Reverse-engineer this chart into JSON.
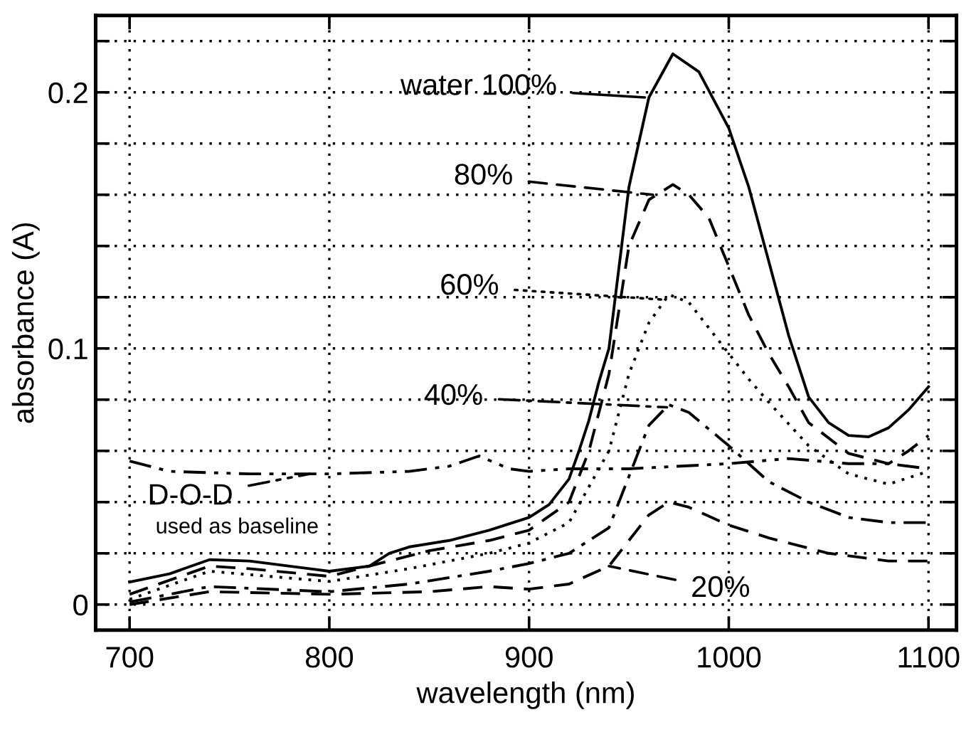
{
  "chart_data": {
    "type": "line",
    "xlabel": "wavelength (nm)",
    "ylabel": "absorbance (A)",
    "xlim": [
      683,
      1114
    ],
    "ylim": [
      -0.01,
      0.23
    ],
    "xticks": [
      700,
      800,
      900,
      1000,
      1100
    ],
    "yticks": [
      0,
      {
        "value": 0.02,
        "label": null
      },
      {
        "value": 0.04,
        "label": null
      },
      {
        "value": 0.06,
        "label": null
      },
      {
        "value": 0.08,
        "label": null
      },
      0.1,
      {
        "value": 0.12,
        "label": null
      },
      {
        "value": 0.14,
        "label": null
      },
      {
        "value": 0.16,
        "label": null
      },
      {
        "value": 0.18,
        "label": null
      },
      0.2,
      {
        "value": 0.22,
        "label": null
      }
    ],
    "grid": true,
    "legend": "top left",
    "marker": "none",
    "annotations": [
      "used as baseline"
    ],
    "series": [
      {
        "name": "water 100%",
        "color": "#000000",
        "line_style": "solid",
        "x": [
          700,
          720,
          740,
          760,
          790,
          800,
          820,
          830,
          840,
          860,
          880,
          900,
          910,
          920,
          925,
          930,
          935,
          940,
          950,
          960,
          972,
          985,
          1000,
          1010,
          1020,
          1030,
          1040,
          1050,
          1060,
          1070,
          1080,
          1090,
          1100
        ],
        "values": [
          0.0088,
          0.012,
          0.0175,
          0.017,
          0.014,
          0.013,
          0.015,
          0.02,
          0.0225,
          0.025,
          0.029,
          0.034,
          0.039,
          0.049,
          0.06,
          0.072,
          0.087,
          0.1,
          0.163,
          0.198,
          0.215,
          0.208,
          0.186,
          0.163,
          0.134,
          0.105,
          0.081,
          0.071,
          0.066,
          0.0655,
          0.069,
          0.076,
          0.085
        ]
      },
      {
        "name": "80%",
        "color": "#000000",
        "line_style": "dashed",
        "x": [
          700,
          740,
          760,
          800,
          830,
          850,
          880,
          900,
          920,
          930,
          940,
          950,
          960,
          972,
          980,
          990,
          1000,
          1010,
          1020,
          1030,
          1040,
          1060,
          1080,
          1090,
          1100
        ],
        "values": [
          0.004,
          0.015,
          0.014,
          0.011,
          0.017,
          0.021,
          0.025,
          0.029,
          0.04,
          0.06,
          0.09,
          0.14,
          0.158,
          0.164,
          0.16,
          0.151,
          0.132,
          0.113,
          0.098,
          0.085,
          0.071,
          0.059,
          0.055,
          0.06,
          0.066
        ]
      },
      {
        "name": "60%",
        "color": "#000000",
        "line_style": "dotted",
        "x": [
          700,
          740,
          800,
          840,
          880,
          900,
          920,
          940,
          950,
          960,
          970,
          980,
          1000,
          1010,
          1020,
          1040,
          1060,
          1080,
          1100
        ],
        "values": [
          0.002,
          0.013,
          0.009,
          0.014,
          0.02,
          0.024,
          0.032,
          0.06,
          0.09,
          0.11,
          0.121,
          0.118,
          0.098,
          0.088,
          0.079,
          0.062,
          0.051,
          0.047,
          0.052
        ]
      },
      {
        "name": "40%",
        "color": "#000000",
        "line_style": "dashdot",
        "x": [
          700,
          740,
          800,
          840,
          880,
          900,
          920,
          940,
          950,
          960,
          970,
          980,
          1000,
          1020,
          1040,
          1060,
          1080,
          1100
        ],
        "values": [
          0.001,
          0.007,
          0.005,
          0.008,
          0.013,
          0.016,
          0.02,
          0.03,
          0.05,
          0.07,
          0.078,
          0.075,
          0.062,
          0.048,
          0.04,
          0.034,
          0.032,
          0.032
        ]
      },
      {
        "name": "20%",
        "color": "#000000",
        "line_style": "dashed",
        "x": [
          700,
          740,
          800,
          850,
          880,
          900,
          920,
          940,
          950,
          960,
          970,
          980,
          1000,
          1020,
          1050,
          1080,
          1100
        ],
        "values": [
          0.0,
          0.005,
          0.004,
          0.005,
          0.007,
          0.006,
          0.008,
          0.015,
          0.025,
          0.035,
          0.04,
          0.038,
          0.031,
          0.026,
          0.02,
          0.017,
          0.017
        ]
      },
      {
        "name": "D-O-D",
        "color": "#000000",
        "line_style": "dashdotdot",
        "x": [
          700,
          720,
          760,
          800,
          840,
          860,
          875,
          890,
          900,
          920,
          950,
          1000,
          1030,
          1060,
          1080,
          1100
        ],
        "values": [
          0.056,
          0.052,
          0.051,
          0.051,
          0.052,
          0.054,
          0.058,
          0.053,
          0.052,
          0.053,
          0.053,
          0.055,
          0.057,
          0.055,
          0.055,
          0.053
        ]
      }
    ]
  }
}
